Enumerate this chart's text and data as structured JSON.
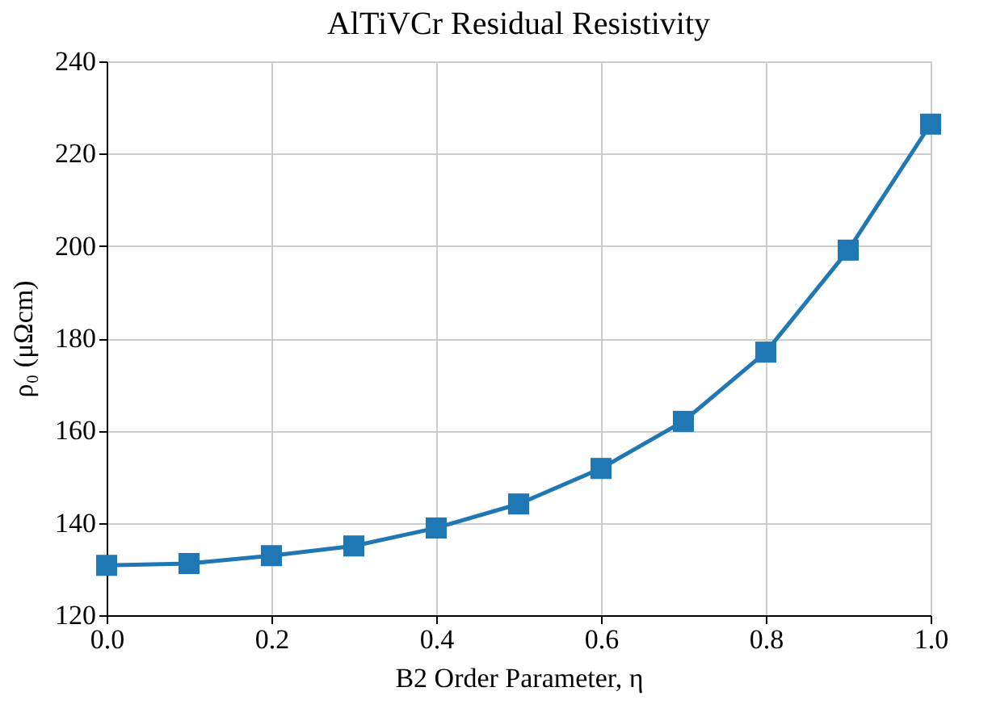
{
  "chart_data": {
    "type": "line",
    "title": "AlTiVCr Residual Resistivity",
    "xlabel": "B2 Order Parameter, η",
    "ylabel": "ρ₀ (μΩcm)",
    "x": [
      0.0,
      0.1,
      0.2,
      0.3,
      0.4,
      0.5,
      0.6,
      0.7,
      0.8,
      0.9,
      1.0
    ],
    "series": [
      {
        "color": "#1f77b4",
        "values": [
          130.8,
          131.2,
          132.9,
          135.0,
          138.9,
          144.1,
          151.8,
          162.0,
          177.0,
          199.1,
          226.4
        ]
      }
    ],
    "xlim": [
      0.0,
      1.0
    ],
    "ylim": [
      120,
      240
    ],
    "xticks": [
      {
        "value": 0.0,
        "label": "0.0"
      },
      {
        "value": 0.2,
        "label": "0.2"
      },
      {
        "value": 0.4,
        "label": "0.4"
      },
      {
        "value": 0.6,
        "label": "0.6"
      },
      {
        "value": 0.8,
        "label": "0.8"
      },
      {
        "value": 1.0,
        "label": "1.0"
      }
    ],
    "yticks": [
      120,
      140,
      160,
      180,
      200,
      220,
      240
    ],
    "grid": true,
    "marker": "square",
    "line_style": "solid"
  }
}
